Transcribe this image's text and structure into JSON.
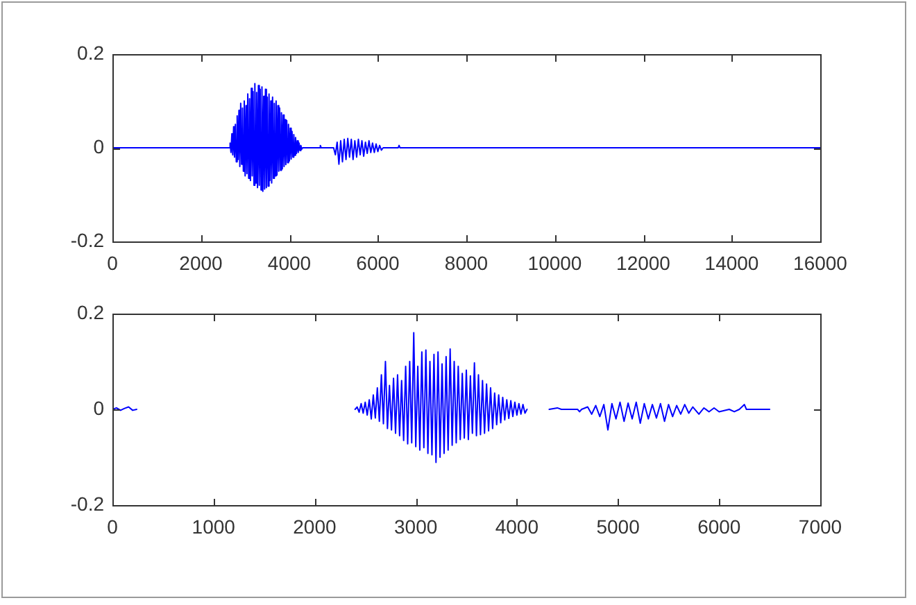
{
  "chart_data": [
    {
      "type": "line",
      "color": "#0000ff",
      "marker": "none",
      "line_style": "solid",
      "x": [
        0,
        2640,
        2660,
        2680,
        2700,
        2720,
        2740,
        2760,
        2780,
        2800,
        2820,
        2840,
        2860,
        2880,
        2900,
        2920,
        2940,
        2960,
        2980,
        3000,
        3020,
        3040,
        3060,
        3080,
        3100,
        3120,
        3140,
        3160,
        3180,
        3200,
        3220,
        3240,
        3260,
        3280,
        3300,
        3320,
        3340,
        3360,
        3380,
        3400,
        3420,
        3440,
        3460,
        3480,
        3500,
        3520,
        3540,
        3560,
        3580,
        3600,
        3620,
        3640,
        3660,
        3680,
        3700,
        3720,
        3740,
        3760,
        3780,
        3800,
        3820,
        3840,
        3860,
        3880,
        3900,
        3920,
        3940,
        3960,
        3980,
        4000,
        4020,
        4040,
        4060,
        4080,
        4100,
        4120,
        4140,
        4160,
        4180,
        4200,
        4220,
        4240,
        4260,
        4280,
        4300,
        4680,
        4700,
        4720,
        5000,
        5040,
        5080,
        5120,
        5160,
        5200,
        5240,
        5280,
        5320,
        5360,
        5400,
        5440,
        5480,
        5520,
        5560,
        5600,
        5640,
        5680,
        5720,
        5760,
        5800,
        5840,
        5880,
        5920,
        5960,
        6000,
        6040,
        6080,
        6120,
        6460,
        6480,
        6500,
        16000
      ],
      "values": [
        0,
        0,
        0.01,
        -0.01,
        0.03,
        -0.015,
        0.045,
        -0.02,
        0.05,
        -0.03,
        0.068,
        -0.025,
        0.08,
        -0.04,
        0.095,
        -0.035,
        0.085,
        -0.05,
        0.1,
        -0.06,
        0.09,
        -0.055,
        0.115,
        -0.065,
        0.105,
        -0.07,
        0.127,
        -0.06,
        0.12,
        -0.08,
        0.137,
        -0.075,
        0.118,
        -0.085,
        0.133,
        -0.08,
        0.125,
        -0.09,
        0.13,
        -0.093,
        0.11,
        -0.088,
        0.125,
        -0.085,
        0.108,
        -0.082,
        0.115,
        -0.07,
        0.1,
        -0.075,
        0.108,
        -0.065,
        0.095,
        -0.06,
        0.1,
        -0.058,
        0.09,
        -0.05,
        0.085,
        -0.048,
        0.075,
        -0.045,
        0.07,
        -0.04,
        0.06,
        -0.036,
        0.058,
        -0.032,
        0.05,
        -0.028,
        0.042,
        -0.024,
        0.035,
        -0.02,
        0.028,
        -0.016,
        0.022,
        -0.012,
        0.015,
        -0.01,
        0.01,
        -0.006,
        0.005,
        -0.003,
        0,
        0,
        0.005,
        0,
        0,
        -0.015,
        0.012,
        -0.035,
        0.015,
        -0.03,
        0.018,
        -0.025,
        0.02,
        -0.02,
        0.018,
        -0.025,
        0.015,
        -0.02,
        0.018,
        -0.015,
        0.015,
        -0.018,
        0.012,
        -0.012,
        0.015,
        -0.01,
        0.01,
        -0.01,
        0.008,
        -0.008,
        0.005,
        -0.005,
        0,
        0,
        0.005,
        0,
        0
      ],
      "xlim": [
        0,
        16000
      ],
      "xticks": [
        0,
        2000,
        4000,
        6000,
        8000,
        10000,
        12000,
        14000,
        16000
      ],
      "ylim": [
        -0.2,
        0.2
      ],
      "yticks": [
        -0.2,
        0,
        0.2
      ]
    },
    {
      "type": "line",
      "color": "#0000ff",
      "marker": "none",
      "line_style": "solid",
      "x": [
        0,
        40,
        80,
        120,
        160,
        200,
        240,
        260,
        2400,
        2420,
        2440,
        2460,
        2480,
        2500,
        2520,
        2540,
        2560,
        2580,
        2600,
        2620,
        2640,
        2660,
        2680,
        2700,
        2720,
        2740,
        2760,
        2780,
        2800,
        2820,
        2840,
        2860,
        2880,
        2900,
        2920,
        2940,
        2960,
        2980,
        3000,
        3020,
        3040,
        3060,
        3080,
        3100,
        3120,
        3140,
        3160,
        3180,
        3200,
        3220,
        3240,
        3260,
        3280,
        3300,
        3320,
        3340,
        3360,
        3380,
        3400,
        3420,
        3440,
        3460,
        3480,
        3500,
        3520,
        3540,
        3560,
        3580,
        3600,
        3620,
        3640,
        3660,
        3680,
        3700,
        3720,
        3740,
        3760,
        3780,
        3800,
        3820,
        3840,
        3860,
        3880,
        3900,
        3920,
        3940,
        3960,
        3980,
        4000,
        4020,
        4040,
        4060,
        4080,
        4100,
        4200,
        4320,
        4400,
        4440,
        4600,
        4620,
        4640,
        4700,
        4740,
        4780,
        4820,
        4860,
        4900,
        4940,
        4980,
        5020,
        5060,
        5100,
        5140,
        5180,
        5220,
        5260,
        5300,
        5340,
        5380,
        5420,
        5460,
        5500,
        5540,
        5580,
        5620,
        5660,
        5700,
        5740,
        5800,
        5850,
        5900,
        5950,
        6000,
        6100,
        6150,
        6200,
        6250,
        6270,
        6500
      ],
      "values": [
        0,
        0.003,
        -0.002,
        0.002,
        0.005,
        -0.002,
        0,
        null,
        0,
        0.005,
        -0.006,
        0.012,
        -0.008,
        0.015,
        -0.012,
        0.02,
        -0.02,
        0.03,
        -0.018,
        0.045,
        -0.025,
        0.072,
        -0.03,
        0.1,
        -0.04,
        0.05,
        -0.043,
        0.065,
        -0.05,
        0.072,
        -0.055,
        0.06,
        -0.065,
        0.09,
        -0.072,
        0.1,
        -0.07,
        0.16,
        -0.078,
        0.09,
        -0.085,
        0.12,
        -0.08,
        0.124,
        -0.092,
        0.1,
        -0.095,
        0.115,
        -0.111,
        0.12,
        -0.1,
        0.095,
        -0.092,
        0.11,
        -0.085,
        0.126,
        -0.075,
        0.1,
        -0.07,
        0.09,
        -0.063,
        0.075,
        -0.06,
        0.082,
        -0.063,
        0.07,
        -0.05,
        0.097,
        -0.055,
        0.072,
        -0.053,
        0.06,
        -0.05,
        0.053,
        -0.045,
        0.045,
        -0.04,
        0.034,
        -0.032,
        0.03,
        -0.028,
        0.025,
        -0.022,
        0.02,
        -0.019,
        0.018,
        -0.015,
        0.015,
        -0.012,
        0.012,
        -0.01,
        0.01,
        -0.008,
        0,
        null,
        0,
        0.003,
        0,
        0,
        -0.005,
        0,
        0.005,
        -0.01,
        0.008,
        -0.015,
        0.01,
        -0.043,
        0.012,
        -0.02,
        0.015,
        -0.025,
        0.013,
        -0.02,
        0.015,
        -0.029,
        0.012,
        -0.02,
        0.01,
        -0.018,
        0.012,
        -0.025,
        0.01,
        -0.015,
        0.008,
        -0.01,
        0.01,
        -0.008,
        0.005,
        -0.01,
        0.003,
        -0.005,
        0.003,
        -0.005,
        0,
        -0.005,
        0,
        0.01,
        0,
        0
      ],
      "xlim": [
        0,
        7000
      ],
      "xticks": [
        0,
        1000,
        2000,
        3000,
        4000,
        5000,
        6000,
        7000
      ],
      "ylim": [
        -0.2,
        0.2
      ],
      "yticks": [
        -0.2,
        0,
        0.2
      ]
    }
  ]
}
